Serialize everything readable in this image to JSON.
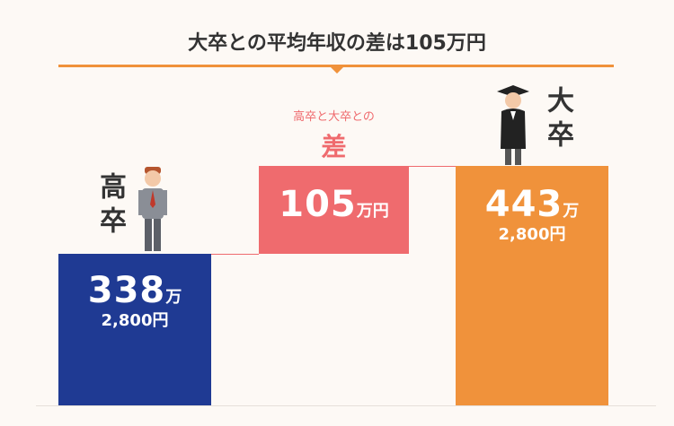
{
  "title": "大卒との平均年収の差は105万円",
  "high_school": {
    "label": "高卒",
    "amount": "338",
    "unit": "万",
    "sub_amount": "2,800円"
  },
  "difference": {
    "caption": "高卒と大卒との",
    "label": "差",
    "amount": "105",
    "unit": "万円"
  },
  "university": {
    "label": "大卒",
    "amount": "443",
    "unit": "万",
    "sub_amount": "2,800円"
  }
}
